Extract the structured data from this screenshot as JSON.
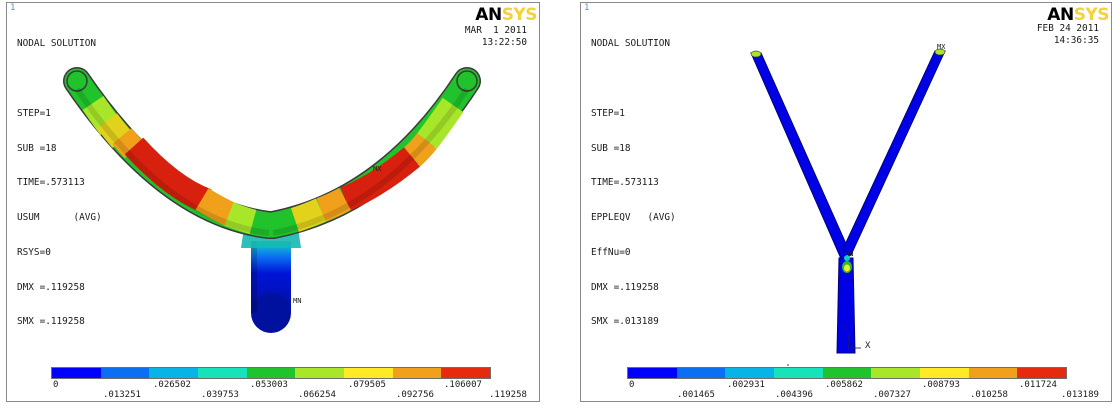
{
  "logo": {
    "an": "AN",
    "sys": "SYS"
  },
  "colors": [
    "#0000ff",
    "#0b6ff2",
    "#08b3e8",
    "#16e3b9",
    "#21c32c",
    "#a8e62a",
    "#ffea25",
    "#f1a01c",
    "#e52a0e"
  ],
  "left": {
    "window_number": "1",
    "info": [
      "NODAL SOLUTION",
      "",
      "STEP=1",
      "SUB =18",
      "TIME=.573113",
      "USUM      (AVG)",
      "RSYS=0",
      "DMX =.119258",
      "SMX =.119258"
    ],
    "date": "MAR  1 2011",
    "time": "13:22:50",
    "min_label": "MN",
    "max_label": "MX",
    "legend_upper": [
      "0",
      ".026502",
      ".053003",
      ".079505",
      ".106007"
    ],
    "legend_lower": [
      ".013251",
      ".039753",
      ".066254",
      ".092756",
      ".119258"
    ]
  },
  "right": {
    "window_number": "1",
    "info": [
      "NODAL SOLUTION",
      "",
      "STEP=1",
      "SUB =18",
      "TIME=.573113",
      "EPPLEQV   (AVG)",
      "EffNu=0",
      "DMX =.119258",
      "SMX =.013189"
    ],
    "date": "FEB 24 2011",
    "time": "14:36:35",
    "max_label": "MX",
    "min_label": "MN",
    "axis_y": "Y",
    "axis_z": "Z",
    "axis_x": "X",
    "legend_upper": [
      "0",
      ".002931",
      ".005862",
      ".008793",
      ".011724"
    ],
    "legend_lower": [
      ".001465",
      ".004396",
      ".007327",
      ".010258",
      ".013189"
    ]
  }
}
